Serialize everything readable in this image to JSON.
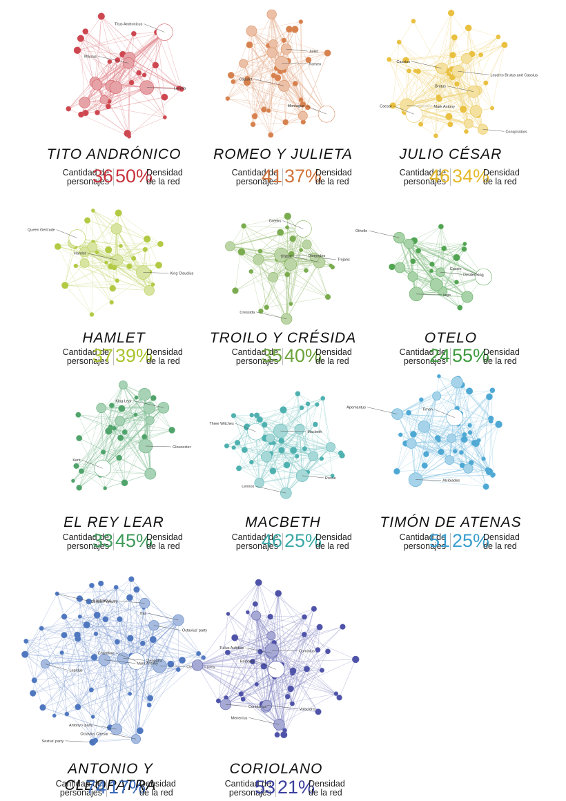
{
  "stats_labels": {
    "characters": [
      "Cantidad de",
      "personajes"
    ],
    "density": [
      "Densidad",
      "de la red"
    ]
  },
  "plays": [
    {
      "id": "tito",
      "title": "TITO ANDRÓNICO",
      "characters": "36",
      "density": "50%",
      "color": "#c8323c",
      "labels": [
        "Titus Andronicus",
        "Lavinia",
        "Marcus"
      ]
    },
    {
      "id": "romeo",
      "title": "ROMEO Y JULIETA",
      "characters": "41",
      "density": "37%",
      "color": "#d2733a",
      "labels": [
        "Montague",
        "Romeo",
        "Capulet",
        "Juliet"
      ]
    },
    {
      "id": "julio",
      "title": "JULIO CÉSAR",
      "characters": "46",
      "density": "34%",
      "color": "#e6b92a",
      "labels": [
        "Caesar",
        "Mark Antony",
        "Cassius",
        "Conspirators",
        "Brutus",
        "Loyal to Brutus and Cassius"
      ]
    },
    {
      "id": "hamlet",
      "title": "HAMLET",
      "characters": "37",
      "density": "39%",
      "color": "#a9c42e",
      "labels": [
        "Queen Gertrude",
        "King Claudius",
        "Hamlet"
      ]
    },
    {
      "id": "troilo",
      "title": "TROILO Y CRÉSIDA",
      "characters": "35",
      "density": "40%",
      "color": "#6ba23a",
      "labels": [
        "Greeks",
        "Diomedes",
        "Cressida",
        "Trojans",
        "Troilus"
      ]
    },
    {
      "id": "otelo",
      "title": "OTELO",
      "characters": "24",
      "density": "55%",
      "color": "#3e9a3e",
      "labels": [
        "Cassio",
        "Iago",
        "Othello",
        "Desdemona"
      ]
    },
    {
      "id": "lear",
      "title": "EL REY LEAR",
      "characters": "33",
      "density": "45%",
      "color": "#3d9a5a",
      "labels": [
        "Kent",
        "Gloucester",
        "King Lear"
      ]
    },
    {
      "id": "macbeth",
      "title": "MACBETH",
      "characters": "46",
      "density": "25%",
      "color": "#3aa8a6",
      "labels": [
        "Three Witches",
        "Macbeth",
        "Lennox",
        "Rosse"
      ]
    },
    {
      "id": "timon",
      "title": "TIMÓN DE ATENAS",
      "characters": "51",
      "density": "25%",
      "color": "#3a9ecf",
      "labels": [
        "Timon",
        "Alcibiades",
        "Apemantus"
      ]
    },
    {
      "id": "antonio",
      "title": "ANTONIO Y CLEOPATRA",
      "characters": "74",
      "density": "17%",
      "color": "#3a68b8",
      "labels": [
        "Charmian",
        "Cleopatra's party",
        "Iras",
        "Cleopatra",
        "Octavius Caesar",
        "Mark Antony",
        "Antony's party",
        "Octavius' party",
        "Enobarbus",
        "Lepidus",
        "Sextus' party",
        "Sextus Pompey"
      ]
    },
    {
      "id": "coriolano",
      "title": "CORIOLANO",
      "characters": "53",
      "density": "21%",
      "color": "#3a3f9e",
      "labels": [
        "Romans",
        "Cominius",
        "Menenius",
        "Coriolanus",
        "Tullus Aufidius",
        "Volscians"
      ]
    }
  ]
}
